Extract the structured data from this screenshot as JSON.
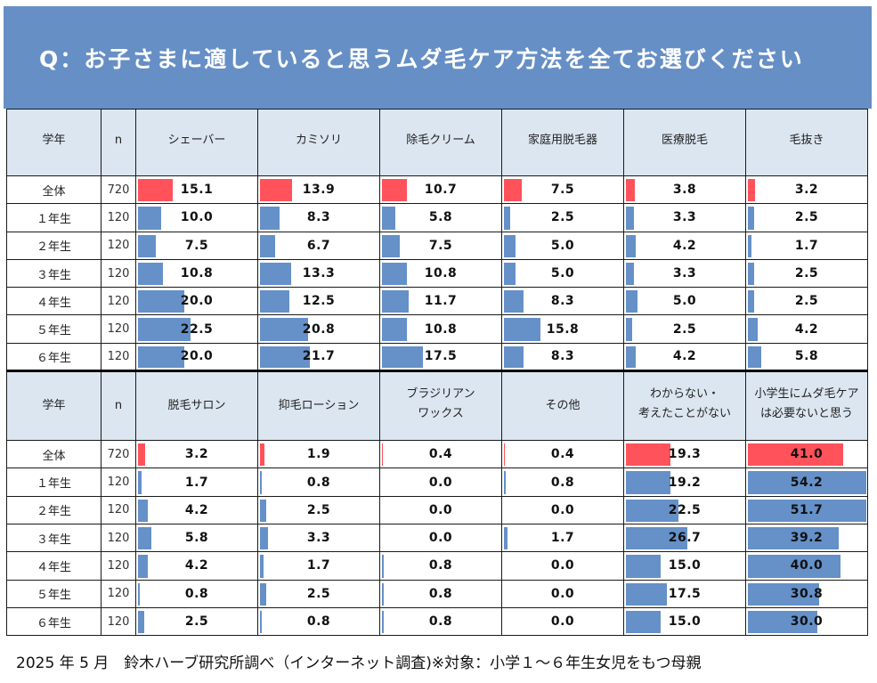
{
  "title": "Q：お子さまに適していると思うムダ毛ケア方法を全てお選びください",
  "colors": {
    "header_bg": "#668fc6",
    "th_bg": "#dce6f1",
    "bar_total": "#ff525a",
    "bar_grade": "#6590c8"
  },
  "table1": {
    "headers": [
      "学年",
      "n",
      "シェーバー",
      "カミソリ",
      "除毛クリーム",
      "家庭用脱毛器",
      "医療脱毛",
      "毛抜き"
    ],
    "rows": [
      {
        "grade": "全体",
        "n": "720",
        "values": [
          "15.1",
          "13.9",
          "10.7",
          "7.5",
          "3.8",
          "3.2"
        ]
      },
      {
        "grade": "１年生",
        "n": "120",
        "values": [
          "10.0",
          "8.3",
          "5.8",
          "2.5",
          "3.3",
          "2.5"
        ]
      },
      {
        "grade": "２年生",
        "n": "120",
        "values": [
          "7.5",
          "6.7",
          "7.5",
          "5.0",
          "4.2",
          "1.7"
        ]
      },
      {
        "grade": "３年生",
        "n": "120",
        "values": [
          "10.8",
          "13.3",
          "10.8",
          "5.0",
          "3.3",
          "2.5"
        ]
      },
      {
        "grade": "４年生",
        "n": "120",
        "values": [
          "20.0",
          "12.5",
          "11.7",
          "8.3",
          "5.0",
          "2.5"
        ]
      },
      {
        "grade": "５年生",
        "n": "120",
        "values": [
          "22.5",
          "20.8",
          "10.8",
          "15.8",
          "2.5",
          "4.2"
        ]
      },
      {
        "grade": "６年生",
        "n": "120",
        "values": [
          "20.0",
          "21.7",
          "17.5",
          "8.3",
          "4.2",
          "5.8"
        ]
      }
    ]
  },
  "table2": {
    "headers": [
      "学年",
      "n",
      "脱毛サロン",
      "抑毛ローション",
      "ブラジリアン\nワックス",
      "その他",
      "わからない・\n考えたことがない",
      "小学生にムダ毛ケア\nは必要ないと思う"
    ],
    "header_lines": [
      [
        "学年"
      ],
      [
        "n"
      ],
      [
        "脱毛サロン"
      ],
      [
        "抑毛ローション"
      ],
      [
        "ブラジリアン",
        "ワックス"
      ],
      [
        "その他"
      ],
      [
        "わからない・",
        "考えたことがない"
      ],
      [
        "小学生にムダ毛ケア",
        "は必要ないと思う"
      ]
    ],
    "rows": [
      {
        "grade": "全体",
        "n": "720",
        "values": [
          "3.2",
          "1.9",
          "0.4",
          "0.4",
          "19.3",
          "41.0"
        ]
      },
      {
        "grade": "１年生",
        "n": "120",
        "values": [
          "1.7",
          "0.8",
          "0.0",
          "0.8",
          "19.2",
          "54.2"
        ]
      },
      {
        "grade": "２年生",
        "n": "120",
        "values": [
          "4.2",
          "2.5",
          "0.0",
          "0.0",
          "22.5",
          "51.7"
        ]
      },
      {
        "grade": "３年生",
        "n": "120",
        "values": [
          "5.8",
          "3.3",
          "0.0",
          "1.7",
          "26.7",
          "39.2"
        ]
      },
      {
        "grade": "４年生",
        "n": "120",
        "values": [
          "4.2",
          "1.7",
          "0.8",
          "0.0",
          "15.0",
          "40.0"
        ]
      },
      {
        "grade": "５年生",
        "n": "120",
        "values": [
          "0.8",
          "2.5",
          "0.8",
          "0.0",
          "17.5",
          "30.8"
        ]
      },
      {
        "grade": "６年生",
        "n": "120",
        "values": [
          "2.5",
          "0.8",
          "0.8",
          "0.0",
          "15.0",
          "30.0"
        ]
      }
    ]
  },
  "footer": "2025 年 5 月　鈴木ハーブ研究所調べ（インターネット調査)※対象：小学１～６年生女児をもつ母親",
  "chart_data": {
    "type": "table",
    "title": "Q：お子さまに適していると思うムダ毛ケア方法を全てお選びください",
    "unit": "%",
    "categories": [
      "全体",
      "１年生",
      "２年生",
      "３年生",
      "４年生",
      "５年生",
      "６年生"
    ],
    "n": [
      720,
      120,
      120,
      120,
      120,
      120,
      120
    ],
    "series": [
      {
        "name": "シェーバー",
        "values": [
          15.1,
          10.0,
          7.5,
          10.8,
          20.0,
          22.5,
          20.0
        ]
      },
      {
        "name": "カミソリ",
        "values": [
          13.9,
          8.3,
          6.7,
          13.3,
          12.5,
          20.8,
          21.7
        ]
      },
      {
        "name": "除毛クリーム",
        "values": [
          10.7,
          5.8,
          7.5,
          10.8,
          11.7,
          10.8,
          17.5
        ]
      },
      {
        "name": "家庭用脱毛器",
        "values": [
          7.5,
          2.5,
          5.0,
          5.0,
          8.3,
          15.8,
          8.3
        ]
      },
      {
        "name": "医療脱毛",
        "values": [
          3.8,
          3.3,
          4.2,
          3.3,
          5.0,
          2.5,
          4.2
        ]
      },
      {
        "name": "毛抜き",
        "values": [
          3.2,
          2.5,
          1.7,
          2.5,
          2.5,
          4.2,
          5.8
        ]
      },
      {
        "name": "脱毛サロン",
        "values": [
          3.2,
          1.7,
          4.2,
          5.8,
          4.2,
          0.8,
          2.5
        ]
      },
      {
        "name": "抑毛ローション",
        "values": [
          1.9,
          0.8,
          2.5,
          3.3,
          1.7,
          2.5,
          0.8
        ]
      },
      {
        "name": "ブラジリアンワックス",
        "values": [
          0.4,
          0.0,
          0.0,
          0.0,
          0.8,
          0.8,
          0.8
        ]
      },
      {
        "name": "その他",
        "values": [
          0.4,
          0.8,
          0.0,
          1.7,
          0.0,
          0.0,
          0.0
        ]
      },
      {
        "name": "わからない・考えたことがない",
        "values": [
          19.3,
          19.2,
          22.5,
          26.7,
          15.0,
          17.5,
          15.0
        ]
      },
      {
        "name": "小学生にムダ毛ケアは必要ないと思う",
        "values": [
          41.0,
          54.2,
          51.7,
          39.2,
          40.0,
          30.8,
          30.0
        ]
      }
    ],
    "note": "Horizontal in-cell data bars; 全体 row bars in red, grade rows in blue",
    "source": "2025 年 5 月　鈴木ハーブ研究所調べ（インターネット調査)※対象：小学１～６年生女児をもつ母親"
  }
}
